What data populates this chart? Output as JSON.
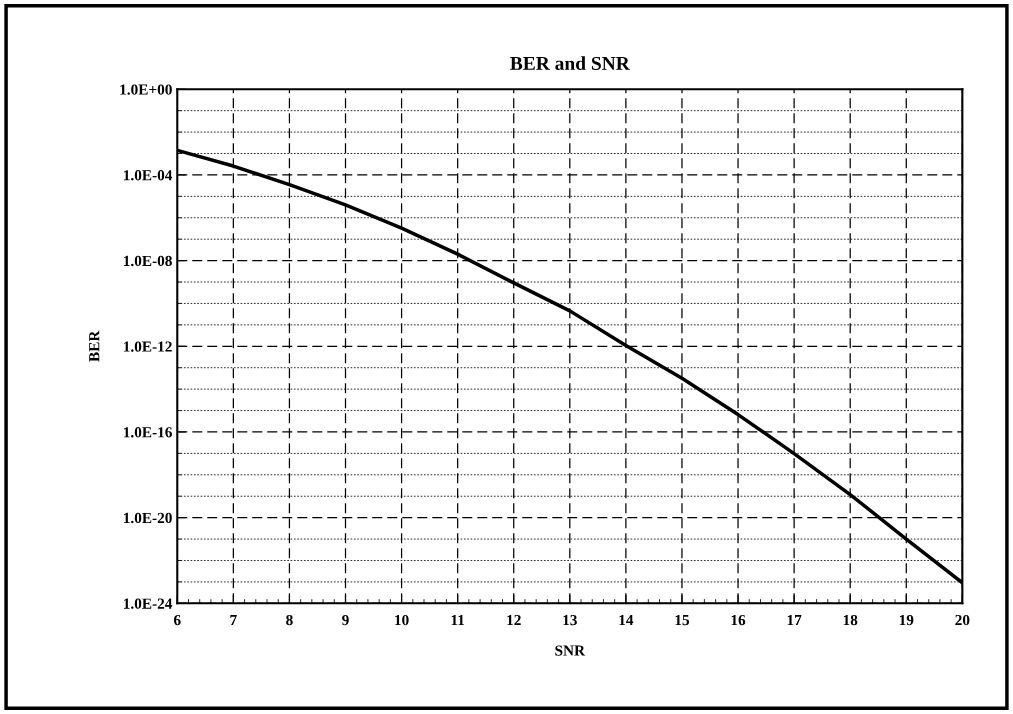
{
  "chart_data": {
    "type": "line",
    "title": "BER and SNR",
    "xlabel": "SNR",
    "ylabel": "BER",
    "x": [
      6,
      7,
      8,
      9,
      10,
      11,
      12,
      13,
      14,
      15,
      16,
      17,
      18,
      19,
      20
    ],
    "series": [
      {
        "color": "#000000",
        "values": [
          0.0014,
          0.00026,
          3.5e-05,
          4e-06,
          3.3e-07,
          2e-08,
          9.1e-10,
          4.5e-11,
          1.1e-12,
          3.2e-14,
          6.5e-16,
          9.8e-18,
          1.2e-19,
          1e-21,
          9.1e-24
        ]
      }
    ],
    "log": "y",
    "grid": true,
    "marker": "none",
    "line_style": "solid",
    "xlim": [
      6,
      20
    ],
    "xticks": [
      6,
      7,
      8,
      9,
      10,
      11,
      12,
      13,
      14,
      15,
      16,
      17,
      18,
      19,
      20
    ],
    "ylim": [
      1e-24,
      1
    ],
    "yticks": [
      {
        "value": 1e-24,
        "label": "1.0E-24"
      },
      {
        "value": 1e-20,
        "label": "1.0E-20"
      },
      {
        "value": 1e-16,
        "label": "1.0E-16"
      },
      {
        "value": 1e-12,
        "label": "1.0E-12"
      },
      {
        "value": 1e-08,
        "label": "1.0E-08"
      },
      {
        "value": 0.0001,
        "label": "1.0E-04"
      },
      {
        "value": 1,
        "label": "1.0E+00"
      }
    ]
  }
}
